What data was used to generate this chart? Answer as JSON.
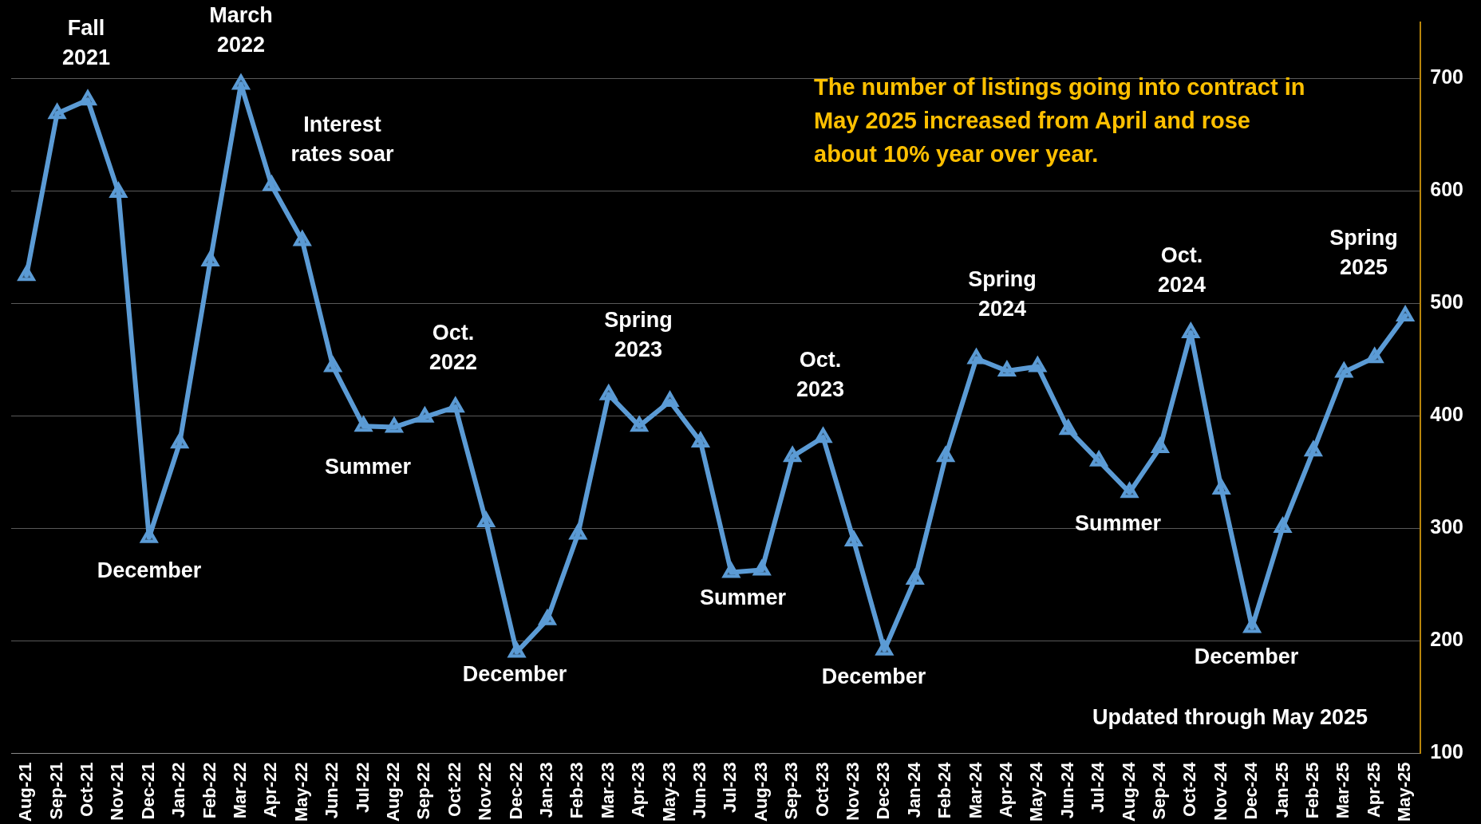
{
  "chart_data": {
    "type": "line",
    "categories": [
      "Aug-21",
      "Sep-21",
      "Oct-21",
      "Nov-21",
      "Dec-21",
      "Jan-22",
      "Feb-22",
      "Mar-22",
      "Apr-22",
      "May-22",
      "Jun-22",
      "Jul-22",
      "Aug-22",
      "Sep-22",
      "Oct-22",
      "Nov-22",
      "Dec-22",
      "Jan-23",
      "Feb-23",
      "Mar-23",
      "Apr-23",
      "May-23",
      "Jun-23",
      "Jul-23",
      "Aug-23",
      "Sep-23",
      "Oct-23",
      "Nov-23",
      "Dec-23",
      "Jan-24",
      "Feb-24",
      "Mar-24",
      "Apr-24",
      "May-24",
      "Jun-24",
      "Jul-24",
      "Aug-24",
      "Sep-24",
      "Oct-24",
      "Nov-24",
      "Dec-24",
      "Jan-25",
      "Feb-25",
      "Mar-25",
      "Apr-25",
      "May-25"
    ],
    "series": [
      {
        "color": "#5b9bd5",
        "values": [
          525,
          669,
          681,
          599,
          292,
          376,
          538,
          695,
          605,
          556,
          444,
          391,
          390,
          399,
          408,
          306,
          190,
          219,
          295,
          419,
          391,
          413,
          377,
          261,
          263,
          364,
          381,
          289,
          192,
          255,
          364,
          451,
          440,
          444,
          388,
          360,
          332,
          372,
          474,
          335,
          212,
          301,
          369,
          439,
          452,
          489
        ]
      }
    ],
    "ylim": [
      100,
      750
    ],
    "yticks": [
      100,
      200,
      300,
      400,
      500,
      600,
      700
    ],
    "grid": "y",
    "marker": "triangle",
    "line_style": "solid",
    "legend": false,
    "annotations": [
      "The number of listings going into contract in May 2025 increased from April and rose about 10% year over year.",
      "Updated through May 2025",
      "Fall 2021",
      "March 2022",
      "Interest rates soar",
      "Summer",
      "Oct. 2022",
      "December",
      "December",
      "Spring 2023",
      "Summer",
      "Oct. 2023",
      "December",
      "Spring 2024",
      "Summer",
      "Oct. 2024",
      "December",
      "Spring 2025"
    ]
  }
}
